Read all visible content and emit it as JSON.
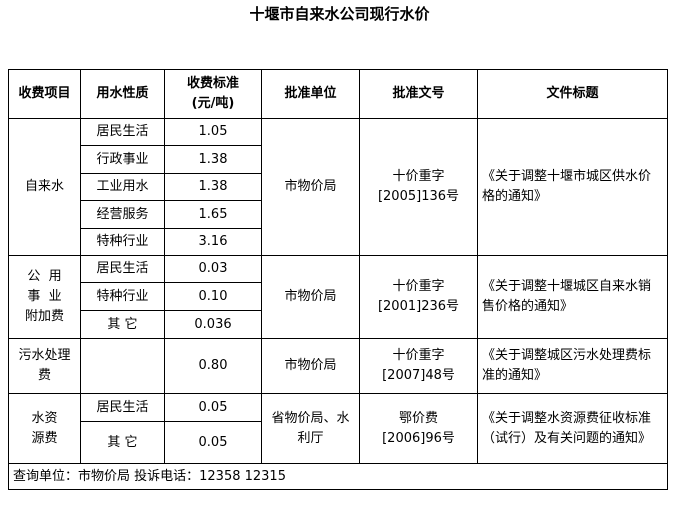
{
  "title": "十堰市自来水公司现行水价",
  "headers": {
    "item": "收费项目",
    "nature": "用水性质",
    "standard_line1": "收费标准",
    "standard_line2": "(元/吨)",
    "approver": "批准单位",
    "doc_no": "批准文号",
    "doc_title": "文件标题"
  },
  "groups": [
    {
      "item": "自来水",
      "approver": "市物价局",
      "doc_no_line1": "十价重字",
      "doc_no_line2": "[2005]136号",
      "doc_title": "《关于调整十堰市城区供水价格的通知》",
      "rows": [
        {
          "nature": "居民生活",
          "price": "1.05"
        },
        {
          "nature": "行政事业",
          "price": "1.38"
        },
        {
          "nature": "工业用水",
          "price": "1.38"
        },
        {
          "nature": "经营服务",
          "price": "1.65"
        },
        {
          "nature": "特种行业",
          "price": "3.16"
        }
      ]
    },
    {
      "item_line1": "公  用",
      "item_line2": "事  业",
      "item_line3": "附加费",
      "approver": "市物价局",
      "doc_no_line1": "十价重字",
      "doc_no_line2": "[2001]236号",
      "doc_title": "《关于调整十堰城区自来水销售价格的通知》",
      "rows": [
        {
          "nature": "居民生活",
          "price": "0.03"
        },
        {
          "nature": "特种行业",
          "price": "0.10"
        },
        {
          "nature": "其 它",
          "price": "0.036"
        }
      ]
    },
    {
      "item_line1": "污水处理",
      "item_line2": "费",
      "nature": "",
      "price": "0.80",
      "approver": "市物价局",
      "doc_no_line1": "十价重字",
      "doc_no_line2": "[2007]48号",
      "doc_title": "《关于调整城区污水处理费标准的通知》"
    },
    {
      "item_line1": "水资",
      "item_line2": "源费",
      "approver": "省物价局、水利厅",
      "doc_no_line1": "鄂价费",
      "doc_no_line2": "[2006]96号",
      "doc_title": "《关于调整水资源费征收标准（试行）及有关问题的通知》",
      "rows": [
        {
          "nature": "居民生活",
          "price": "0.05"
        },
        {
          "nature": "其 它",
          "price": "0.05"
        }
      ]
    }
  ],
  "footer": "查询单位：市物价局 投诉电话：12358 12315"
}
